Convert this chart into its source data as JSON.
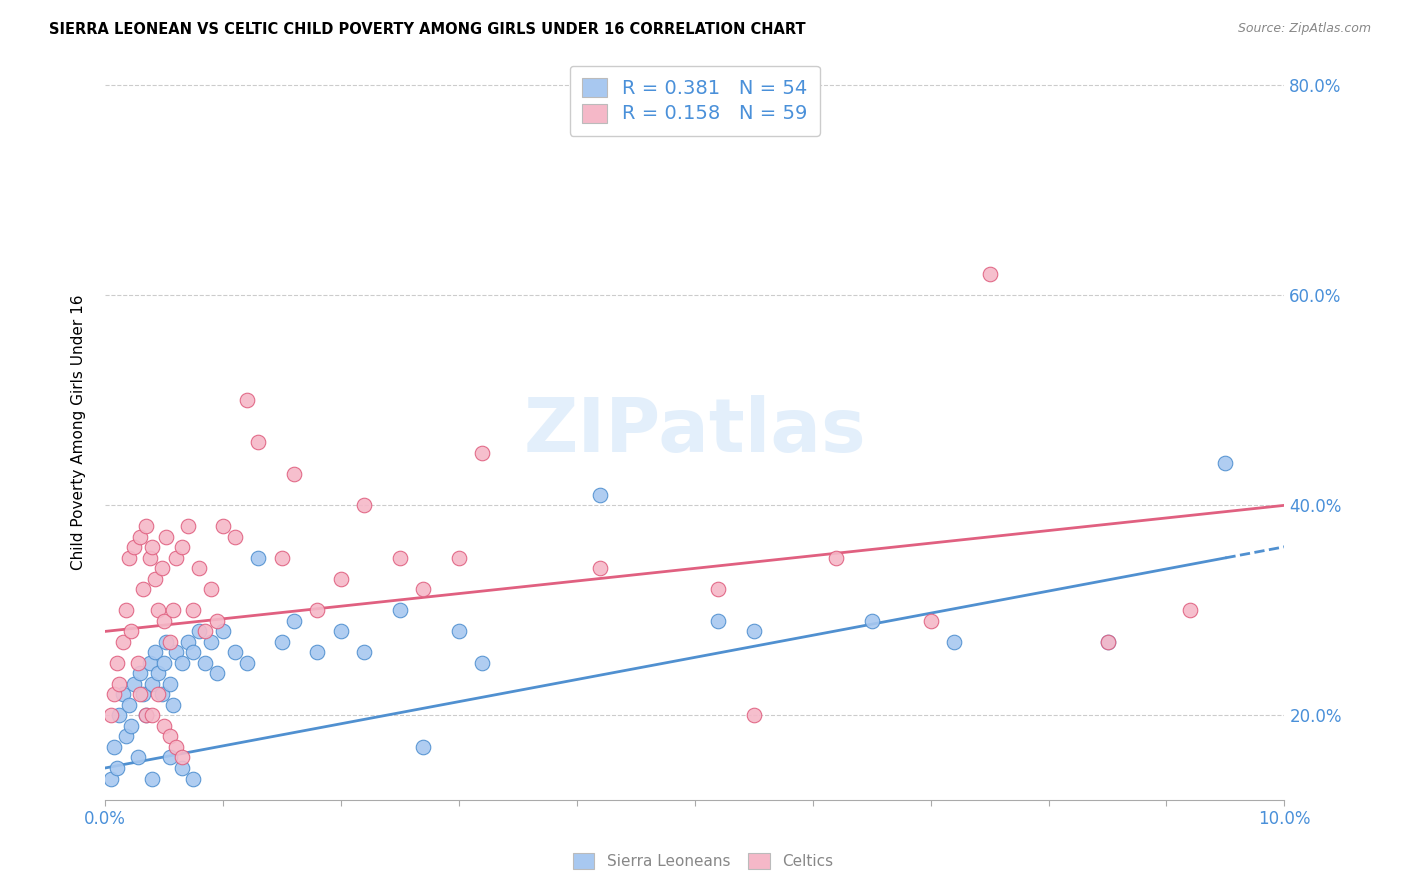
{
  "title": "SIERRA LEONEAN VS CELTIC CHILD POVERTY AMONG GIRLS UNDER 16 CORRELATION CHART",
  "source": "Source: ZipAtlas.com",
  "ylabel": "Child Poverty Among Girls Under 16",
  "legend_label1": "Sierra Leoneans",
  "legend_label2": "Celtics",
  "r1": 0.381,
  "n1": 54,
  "r2": 0.158,
  "n2": 59,
  "color_blue": "#A8C8F0",
  "color_pink": "#F5B8C8",
  "color_blue_line": "#5090D0",
  "color_pink_line": "#E06080",
  "color_blue_text": "#4A90D9",
  "xlim": [
    0.0,
    10.0
  ],
  "ylim": [
    12.0,
    82.0
  ],
  "yticks": [
    20.0,
    40.0,
    60.0,
    80.0
  ],
  "xticks": [
    0.0,
    1.0,
    2.0,
    3.0,
    4.0,
    5.0,
    6.0,
    7.0,
    8.0,
    9.0,
    10.0
  ],
  "sierra_x": [
    0.05,
    0.08,
    0.1,
    0.12,
    0.15,
    0.18,
    0.2,
    0.22,
    0.25,
    0.28,
    0.3,
    0.32,
    0.35,
    0.38,
    0.4,
    0.42,
    0.45,
    0.48,
    0.5,
    0.52,
    0.55,
    0.58,
    0.6,
    0.65,
    0.7,
    0.75,
    0.8,
    0.85,
    0.9,
    0.95,
    1.0,
    1.1,
    1.2,
    1.3,
    1.5,
    1.6,
    1.8,
    2.0,
    2.2,
    2.5,
    2.7,
    3.0,
    3.2,
    4.2,
    5.2,
    5.5,
    6.5,
    7.2,
    8.5,
    9.5,
    0.4,
    0.55,
    0.65,
    0.75
  ],
  "sierra_y": [
    14.0,
    17.0,
    15.0,
    20.0,
    22.0,
    18.0,
    21.0,
    19.0,
    23.0,
    16.0,
    24.0,
    22.0,
    20.0,
    25.0,
    23.0,
    26.0,
    24.0,
    22.0,
    25.0,
    27.0,
    23.0,
    21.0,
    26.0,
    25.0,
    27.0,
    26.0,
    28.0,
    25.0,
    27.0,
    24.0,
    28.0,
    26.0,
    25.0,
    35.0,
    27.0,
    29.0,
    26.0,
    28.0,
    26.0,
    30.0,
    17.0,
    28.0,
    25.0,
    41.0,
    29.0,
    28.0,
    29.0,
    27.0,
    27.0,
    44.0,
    14.0,
    16.0,
    15.0,
    14.0
  ],
  "celtic_x": [
    0.05,
    0.08,
    0.1,
    0.12,
    0.15,
    0.18,
    0.2,
    0.22,
    0.25,
    0.28,
    0.3,
    0.32,
    0.35,
    0.38,
    0.4,
    0.42,
    0.45,
    0.48,
    0.5,
    0.52,
    0.55,
    0.58,
    0.6,
    0.65,
    0.7,
    0.75,
    0.8,
    0.85,
    0.9,
    0.95,
    1.0,
    1.1,
    1.2,
    1.3,
    1.5,
    1.6,
    1.8,
    2.0,
    2.2,
    2.5,
    2.7,
    3.0,
    3.2,
    4.2,
    5.2,
    5.5,
    6.2,
    7.0,
    7.5,
    8.5,
    9.2,
    0.3,
    0.35,
    0.4,
    0.45,
    0.5,
    0.55,
    0.6,
    0.65
  ],
  "celtic_y": [
    20.0,
    22.0,
    25.0,
    23.0,
    27.0,
    30.0,
    35.0,
    28.0,
    36.0,
    25.0,
    37.0,
    32.0,
    38.0,
    35.0,
    36.0,
    33.0,
    30.0,
    34.0,
    29.0,
    37.0,
    27.0,
    30.0,
    35.0,
    36.0,
    38.0,
    30.0,
    34.0,
    28.0,
    32.0,
    29.0,
    38.0,
    37.0,
    50.0,
    46.0,
    35.0,
    43.0,
    30.0,
    33.0,
    40.0,
    35.0,
    32.0,
    35.0,
    45.0,
    34.0,
    32.0,
    20.0,
    35.0,
    29.0,
    62.0,
    27.0,
    30.0,
    22.0,
    20.0,
    20.0,
    22.0,
    19.0,
    18.0,
    17.0,
    16.0
  ],
  "trend_blue_x0": 0.0,
  "trend_blue_x1": 9.5,
  "trend_blue_xdash": 9.5,
  "trend_blue_xend": 10.0,
  "trend_blue_y0": 15.0,
  "trend_blue_y1": 35.0,
  "trend_pink_x0": 0.0,
  "trend_pink_x1": 10.0,
  "trend_pink_y0": 28.0,
  "trend_pink_y1": 40.0
}
